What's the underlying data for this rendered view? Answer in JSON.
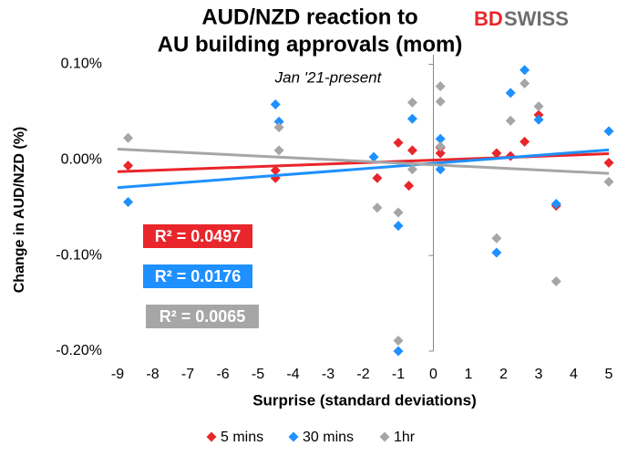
{
  "chart_data": {
    "type": "scatter",
    "title": [
      "AUD/NZD reaction to",
      "AU building approvals (mom)"
    ],
    "subtitle": "Jan '21-present",
    "logo": [
      "BD",
      "SWISS"
    ],
    "x_label": "Surprise (standard deviations)",
    "y_label": "Change in AUD/NZD  (%)",
    "xlim": [
      -9,
      5
    ],
    "xticks": [
      -9,
      -8,
      -7,
      -6,
      -5,
      -4,
      -3,
      -2,
      -1,
      0,
      1,
      2,
      3,
      4,
      5
    ],
    "ylim": [
      -0.2,
      0.11
    ],
    "yticks": [
      {
        "value": -0.2,
        "label": "-0.20%"
      },
      {
        "value": -0.1,
        "label": "-0.10%"
      },
      {
        "value": 0,
        "label": "0.00%"
      },
      {
        "value": 0.1,
        "label": "0.10%"
      }
    ],
    "trendline": true,
    "series": [
      {
        "name": "5 mins",
        "color": "#e8262b",
        "r2_label": "R² = 0.0497",
        "x": [
          -8.7,
          -4.5,
          -4.5,
          -1.6,
          -1.0,
          -0.6,
          -0.7,
          0.2,
          0.2,
          1.8,
          2.2,
          2.6,
          3.0,
          3.5,
          5.0
        ],
        "values": [
          -0.006,
          -0.011,
          -0.019,
          -0.019,
          0.018,
          0.01,
          -0.027,
          0.007,
          0.013,
          0.007,
          0.004,
          0.019,
          0.047,
          -0.048,
          -0.003
        ]
      },
      {
        "name": "30 mins",
        "color": "#1e90ff",
        "r2_label": "R² = 0.0176",
        "x": [
          -8.7,
          -4.5,
          -4.4,
          -1.7,
          -1.0,
          -1.0,
          -0.6,
          0.2,
          0.2,
          1.8,
          2.2,
          2.6,
          3.0,
          3.5,
          5.0
        ],
        "values": [
          -0.044,
          0.058,
          0.04,
          0.003,
          -0.069,
          -0.2,
          0.043,
          0.022,
          -0.01,
          -0.097,
          0.07,
          0.094,
          0.042,
          -0.046,
          0.03
        ]
      },
      {
        "name": "1hr",
        "color": "#a6a6a6",
        "r2_label": "R² = 0.0065",
        "x": [
          -8.7,
          -4.4,
          -4.4,
          -1.6,
          -1.0,
          -1.0,
          -0.6,
          -0.6,
          0.2,
          0.2,
          0.2,
          1.8,
          2.2,
          2.6,
          3.0,
          3.5,
          5.0
        ],
        "values": [
          0.023,
          0.034,
          0.01,
          -0.05,
          -0.189,
          -0.055,
          0.06,
          -0.01,
          0.077,
          0.061,
          0.014,
          -0.082,
          0.041,
          0.08,
          0.056,
          -0.127,
          -0.023
        ]
      }
    ]
  }
}
